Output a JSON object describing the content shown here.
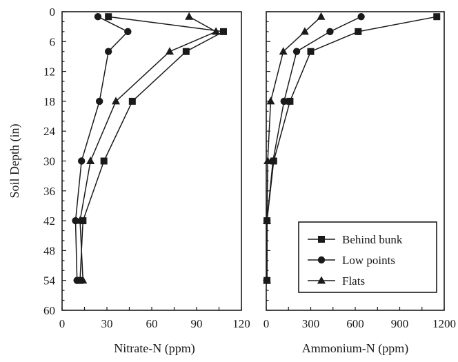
{
  "chart_data": {
    "type": "line",
    "shared_ylabel": "Soil Depth (in)",
    "legend": {
      "placement": "lower-right of right panel",
      "entries": [
        {
          "name": "Behind bunk",
          "marker": "square"
        },
        {
          "name": "Low points",
          "marker": "circle"
        },
        {
          "name": "Flats",
          "marker": "triangle"
        }
      ]
    },
    "panels": [
      {
        "xlabel": "Nitrate-N (ppm)",
        "xlim": [
          0,
          120
        ],
        "xticks": [
          0,
          30,
          60,
          90,
          120
        ],
        "ylim": [
          0,
          60
        ],
        "y_inverted": true,
        "yticks": [
          0,
          6,
          12,
          18,
          24,
          30,
          36,
          42,
          48,
          54,
          60
        ],
        "series": [
          {
            "name": "Behind bunk",
            "marker": "square",
            "points": [
              [
                31,
                1
              ],
              [
                108,
                4
              ],
              [
                83,
                8
              ],
              [
                47,
                18
              ],
              [
                28,
                30
              ],
              [
                14,
                42
              ],
              [
                12,
                54
              ]
            ]
          },
          {
            "name": "Low points",
            "marker": "circle",
            "points": [
              [
                24,
                1
              ],
              [
                44,
                4
              ],
              [
                31,
                8
              ],
              [
                25,
                18
              ],
              [
                13,
                30
              ],
              [
                9,
                42
              ],
              [
                10,
                54
              ]
            ]
          },
          {
            "name": "Flats",
            "marker": "triangle",
            "points": [
              [
                85,
                1
              ],
              [
                103,
                4
              ],
              [
                72,
                8
              ],
              [
                36,
                18
              ],
              [
                19,
                30
              ],
              [
                12,
                42
              ],
              [
                14,
                54
              ]
            ]
          }
        ]
      },
      {
        "xlabel": "Ammonium-N (ppm)",
        "xlim": [
          0,
          1200
        ],
        "xticks": [
          0,
          300,
          600,
          900,
          1200
        ],
        "ylim": [
          0,
          60
        ],
        "y_inverted": true,
        "series": [
          {
            "name": "Behind bunk",
            "marker": "square",
            "points": [
              [
                1150,
                1
              ],
              [
                620,
                4
              ],
              [
                300,
                8
              ],
              [
                160,
                18
              ],
              [
                50,
                30
              ],
              [
                5,
                42
              ],
              [
                5,
                54
              ]
            ]
          },
          {
            "name": "Low points",
            "marker": "circle",
            "points": [
              [
                640,
                1
              ],
              [
                430,
                4
              ],
              [
                205,
                8
              ],
              [
                120,
                18
              ],
              [
                45,
                30
              ],
              [
                5,
                42
              ],
              [
                3,
                54
              ]
            ]
          },
          {
            "name": "Flats",
            "marker": "triangle",
            "points": [
              [
                370,
                1
              ],
              [
                260,
                4
              ],
              [
                115,
                8
              ],
              [
                30,
                18
              ],
              [
                10,
                30
              ],
              [
                5,
                42
              ],
              [
                5,
                54
              ]
            ]
          }
        ]
      }
    ]
  }
}
